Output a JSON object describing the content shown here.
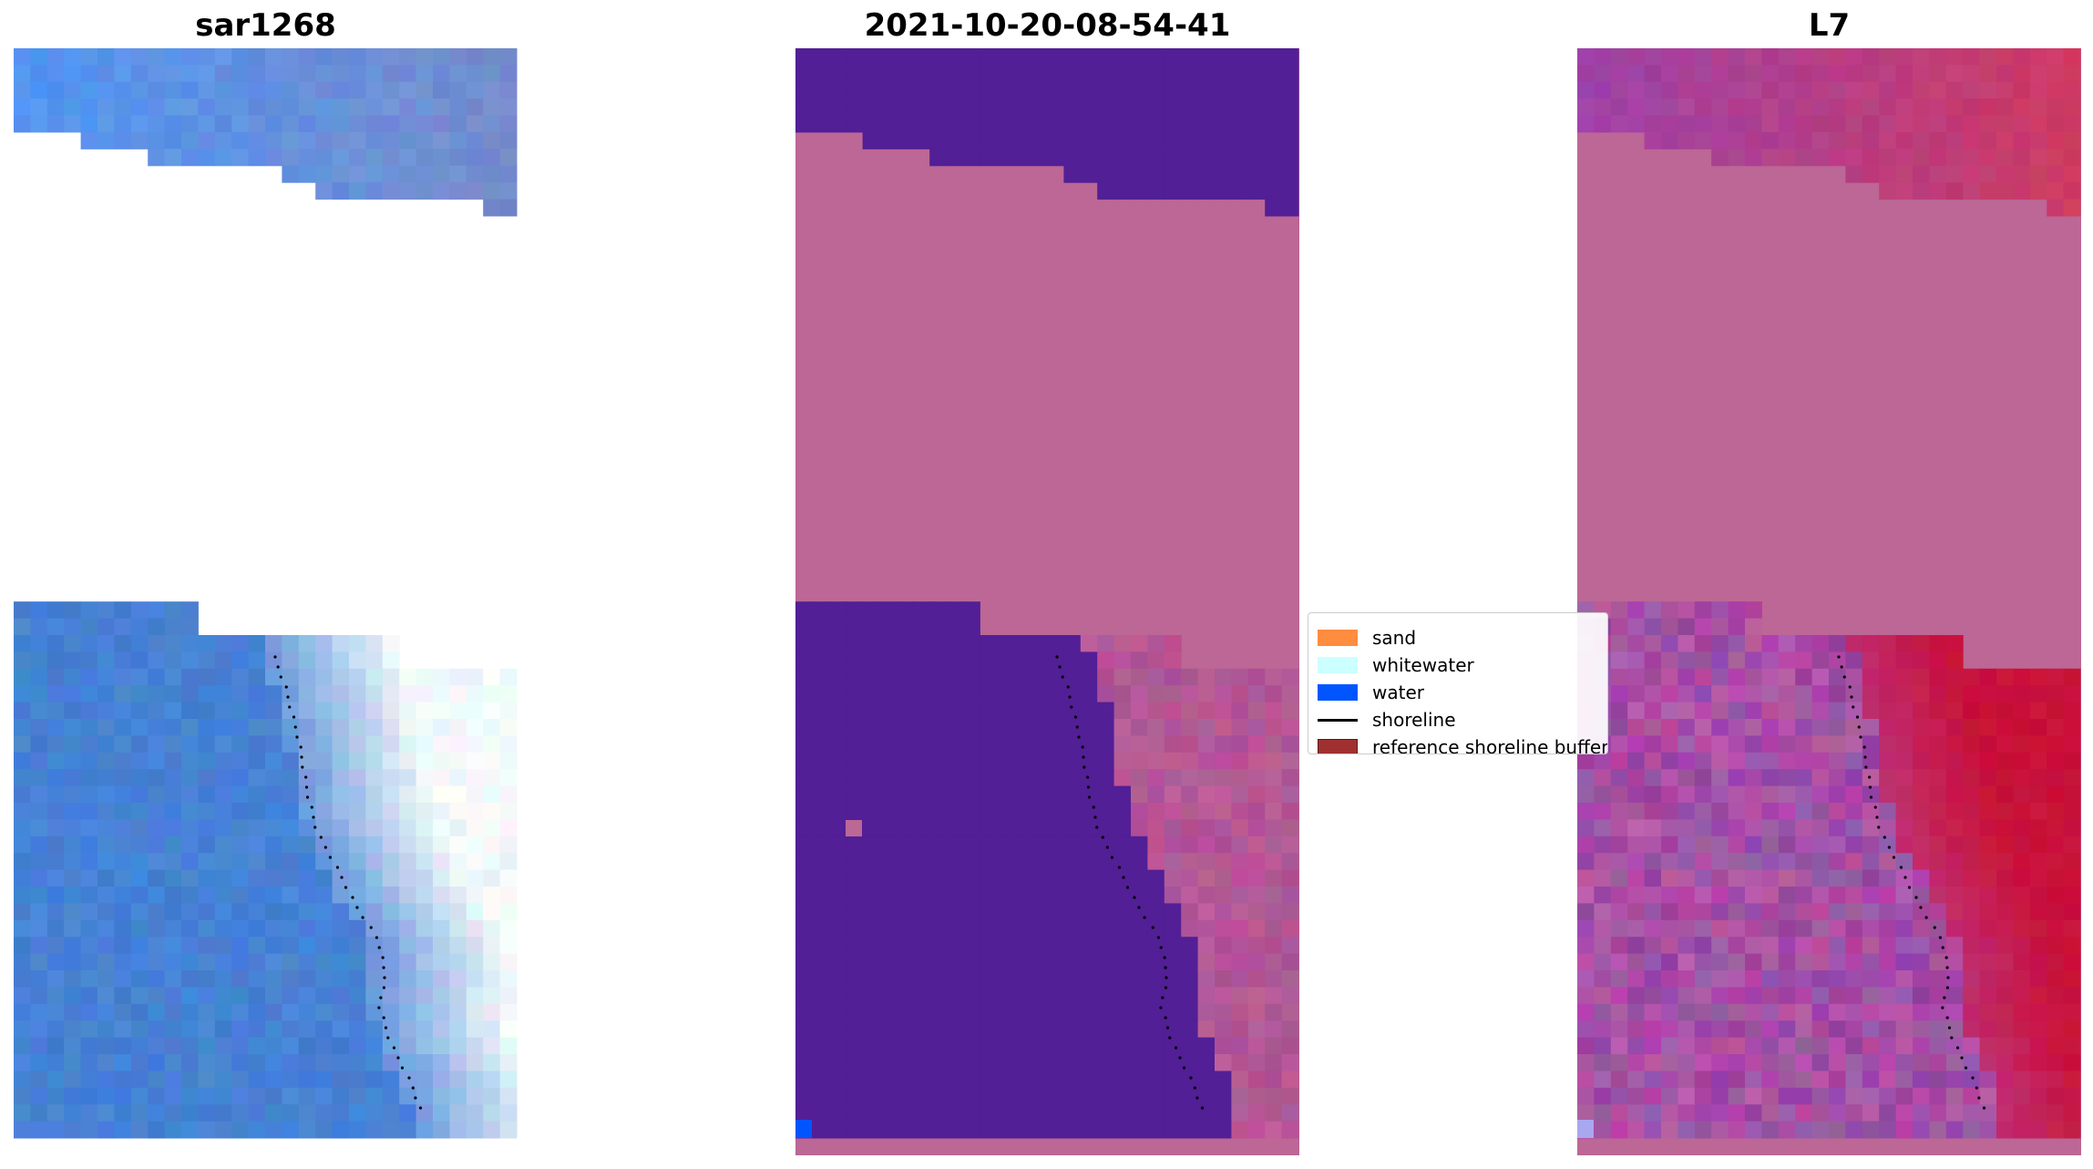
{
  "panels": [
    {
      "title": "sar1268",
      "kind": "rgb"
    },
    {
      "title": "2021-10-20-08-54-41",
      "kind": "classified"
    },
    {
      "title": "L7",
      "kind": "mndwi"
    }
  ],
  "legend": {
    "items": [
      {
        "label": "sand",
        "color": "#ff8c3f",
        "type": "patch"
      },
      {
        "label": "whitewater",
        "color": "#ccffff",
        "type": "patch"
      },
      {
        "label": "water",
        "color": "#0055ff",
        "type": "patch"
      },
      {
        "label": "shoreline",
        "color": "#000000",
        "type": "line"
      },
      {
        "label": "reference shoreline buffer",
        "color": "#a03030",
        "type": "patch"
      }
    ]
  },
  "colors": {
    "class_background": "#521f96",
    "class_nodata": "#bc6795",
    "water_class": "#0055ff",
    "mndwi_high": "#c2073a",
    "mndwi_low": "#8a3aa0"
  }
}
